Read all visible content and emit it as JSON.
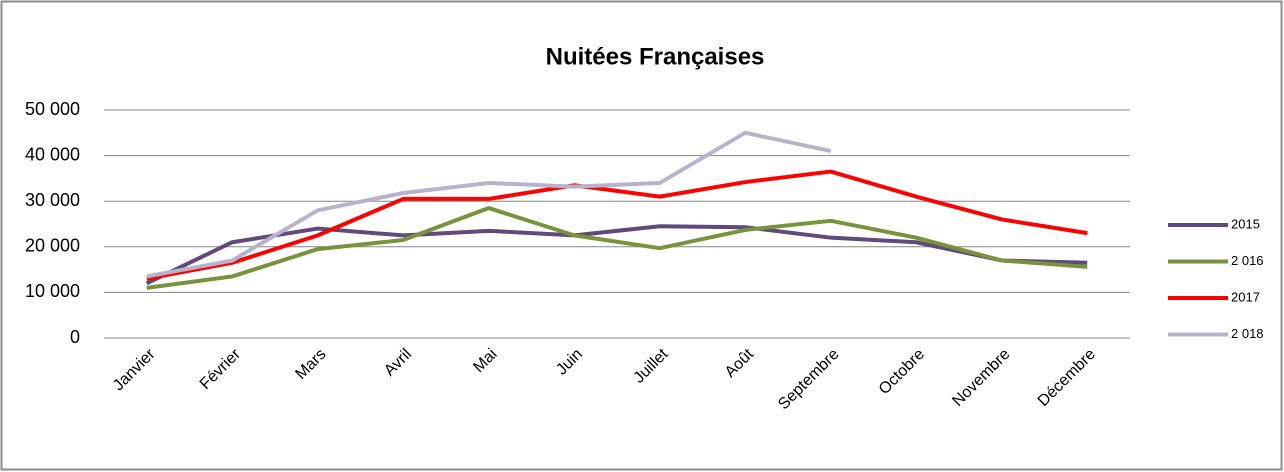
{
  "chart_data": {
    "type": "line",
    "title": "Nuitées Françaises",
    "categories": [
      "Janvier",
      "Février",
      "Mars",
      "Avril",
      "Mai",
      "Juin",
      "Juillet",
      "Août",
      "Septembre",
      "Octobre",
      "Novembre",
      "Décembre"
    ],
    "series": [
      {
        "name": "2015",
        "color": "#604a7b",
        "values": [
          12000,
          21000,
          24000,
          22500,
          23500,
          22500,
          24500,
          24300,
          22000,
          21000,
          17000,
          16500
        ]
      },
      {
        "name": "2 016",
        "color": "#77933c",
        "values": [
          11000,
          13500,
          19500,
          21500,
          28500,
          22500,
          19700,
          23700,
          25700,
          22000,
          17000,
          15600
        ]
      },
      {
        "name": "2017",
        "color": "#ff0000",
        "values": [
          13000,
          16500,
          22500,
          30500,
          30500,
          33500,
          31000,
          34200,
          36500,
          31000,
          26000,
          23000
        ]
      },
      {
        "name": "2 018",
        "color": "#b9b2cc",
        "values": [
          13500,
          17000,
          28000,
          31800,
          34000,
          33200,
          34000,
          45000,
          41000,
          null,
          null,
          null
        ]
      }
    ],
    "ylim": [
      0,
      50000
    ],
    "yticks": [
      0,
      {
        "value": 10000,
        "label": "10 000"
      },
      {
        "value": 20000,
        "label": "20 000"
      },
      {
        "value": 30000,
        "label": "30 000"
      },
      {
        "value": 40000,
        "label": "40 000"
      },
      {
        "value": 50000,
        "label": "50 000"
      }
    ],
    "grid": true,
    "legend": "right"
  }
}
